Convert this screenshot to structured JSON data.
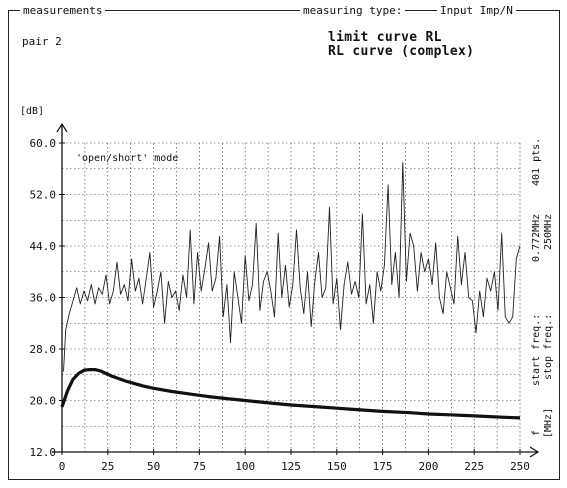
{
  "header": {
    "title": "measurements",
    "measuring_type_label": "measuring type:",
    "measuring_type_value": "Input Imp/N",
    "pair": "pair 2",
    "curve_line1": "limit curve RL",
    "curve_line2": "RL curve (complex)"
  },
  "annotations": {
    "mode": "'open/short' mode",
    "points": "401 pts.",
    "start_freq_value": "0.772MHz",
    "stop_freq_value": "250MHz",
    "start_freq_label": "start freq.:",
    "stop_freq_label": "stop freq.:",
    "unit_mhz": "[MHz]",
    "f_label": "f"
  },
  "chart_data": {
    "type": "line",
    "ylabel": "[dB]",
    "xlim": [
      0,
      250
    ],
    "ylim": [
      12,
      60
    ],
    "x_ticks": [
      0,
      25,
      50,
      75,
      100,
      125,
      150,
      175,
      200,
      225,
      250
    ],
    "y_ticks": [
      "12.0",
      "20.0",
      "28.0",
      "36.0",
      "44.0",
      "52.0",
      "60.0"
    ],
    "grid": true,
    "series": [
      {
        "role": "rl-curve",
        "color": "#222222",
        "x": [
          0.8,
          2,
          4,
          6,
          8,
          10,
          12,
          14,
          16,
          18,
          20,
          22,
          24,
          26,
          28,
          30,
          32,
          34,
          36,
          38,
          40,
          42,
          44,
          46,
          48,
          50,
          52,
          54,
          56,
          58,
          60,
          62,
          64,
          66,
          68,
          70,
          72,
          74,
          76,
          78,
          80,
          82,
          84,
          86,
          88,
          90,
          92,
          94,
          96,
          98,
          100,
          102,
          104,
          106,
          108,
          110,
          112,
          114,
          116,
          118,
          120,
          122,
          124,
          126,
          128,
          130,
          132,
          134,
          136,
          138,
          140,
          142,
          144,
          146,
          148,
          150,
          152,
          154,
          156,
          158,
          160,
          162,
          164,
          166,
          168,
          170,
          172,
          174,
          176,
          178,
          180,
          182,
          184,
          186,
          188,
          190,
          192,
          194,
          196,
          198,
          200,
          202,
          204,
          206,
          208,
          210,
          212,
          214,
          216,
          218,
          220,
          222,
          224,
          226,
          228,
          230,
          232,
          234,
          236,
          238,
          240,
          242,
          244,
          246,
          248,
          250
        ],
        "y": [
          24.5,
          31.0,
          33.5,
          35.5,
          37.5,
          35.0,
          37.0,
          35.5,
          38.0,
          35.0,
          37.5,
          36.5,
          39.5,
          35.0,
          37.0,
          41.5,
          36.5,
          38.0,
          35.5,
          42.0,
          37.0,
          39.0,
          35.0,
          39.0,
          43.0,
          34.5,
          37.0,
          40.0,
          32.0,
          38.5,
          36.0,
          37.0,
          34.0,
          39.5,
          36.0,
          46.5,
          35.0,
          43.0,
          37.0,
          40.5,
          44.5,
          37.0,
          39.0,
          45.5,
          33.0,
          38.0,
          29.0,
          40.0,
          36.0,
          32.0,
          42.5,
          35.5,
          38.0,
          47.5,
          34.0,
          38.5,
          40.0,
          37.0,
          33.0,
          46.0,
          36.0,
          41.0,
          34.5,
          38.0,
          46.5,
          37.5,
          33.5,
          40.0,
          31.5,
          38.5,
          43.0,
          36.0,
          37.5,
          50.0,
          35.0,
          39.0,
          31.0,
          38.0,
          41.5,
          36.5,
          38.5,
          36.0,
          49.0,
          35.0,
          38.0,
          32.0,
          40.0,
          37.0,
          41.0,
          53.5,
          38.0,
          43.0,
          36.0,
          57.0,
          38.5,
          46.0,
          44.0,
          37.0,
          43.0,
          40.0,
          42.0,
          38.0,
          44.5,
          36.0,
          33.5,
          40.0,
          37.5,
          35.0,
          45.5,
          38.0,
          43.0,
          36.0,
          35.5,
          30.5,
          37.0,
          33.0,
          39.0,
          37.0,
          40.0,
          34.0,
          46.0,
          33.0,
          32.0,
          33.0,
          42.0,
          44.0
        ]
      },
      {
        "role": "limit-curve",
        "color": "#111111",
        "x": [
          0,
          3,
          6,
          9,
          12,
          15,
          18,
          21,
          24,
          27,
          30,
          35,
          40,
          45,
          50,
          60,
          70,
          80,
          90,
          100,
          110,
          125,
          140,
          150,
          160,
          175,
          190,
          200,
          210,
          225,
          240,
          250
        ],
        "y": [
          19.0,
          21.5,
          23.3,
          24.2,
          24.7,
          24.8,
          24.8,
          24.6,
          24.2,
          23.8,
          23.5,
          23.0,
          22.6,
          22.2,
          21.9,
          21.4,
          21.0,
          20.6,
          20.3,
          20.0,
          19.7,
          19.3,
          19.0,
          18.8,
          18.6,
          18.3,
          18.1,
          17.9,
          17.8,
          17.6,
          17.4,
          17.3
        ]
      }
    ]
  }
}
